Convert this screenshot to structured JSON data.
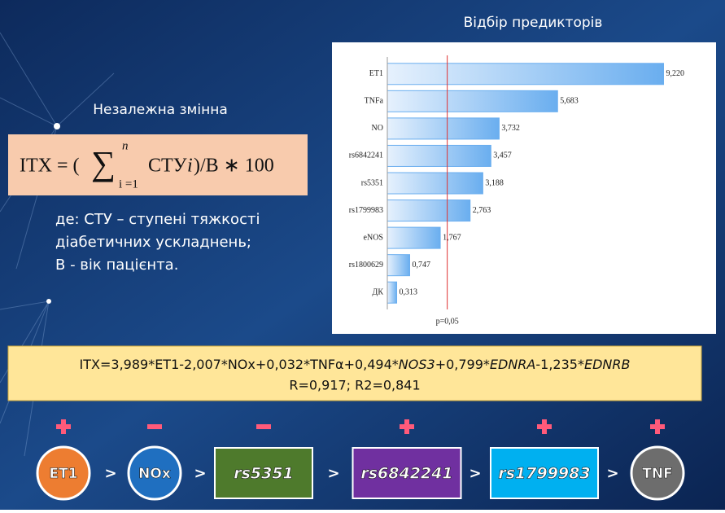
{
  "slide": {
    "left_heading": "Незалежна змінна",
    "formula": {
      "lhs": "ІТХ = (",
      "sum": "∑",
      "sup": "n",
      "sub": "i =1",
      "term": "СТУ",
      "index": "i",
      "rhs": " )/В ∗ 100"
    },
    "notes": [
      "де: СТУ – ступені тяжкості",
      "діабетичних ускладнень;",
      "В - вік пацієнта."
    ],
    "equation": {
      "segments": [
        {
          "text": "ІТХ=3,989*ЕТ1-2,007*NOx+0,032*TNFα+0,494*",
          "italic": false
        },
        {
          "text": "NOS3",
          "italic": true
        },
        {
          "text": "+0,799*",
          "italic": false
        },
        {
          "text": "EDNRA",
          "italic": true
        },
        {
          "text": "-1,235*",
          "italic": false
        },
        {
          "text": "EDNRB",
          "italic": true
        }
      ],
      "stats": "R=0,917; R2=0,841"
    },
    "flow": {
      "separator": ">",
      "nodes": [
        {
          "label": "ЕТ1",
          "sign": "plus",
          "shape": "circle",
          "color": "#ed7d31",
          "italic": false
        },
        {
          "label": "NOx",
          "sign": "minus",
          "shape": "circle",
          "color": "#1f6fc0",
          "italic": false
        },
        {
          "label": "rs5351",
          "sign": "minus",
          "shape": "rect",
          "color": "#4e7a2c",
          "italic": true
        },
        {
          "label": "rs6842241",
          "sign": "plus",
          "shape": "rect",
          "color": "#7030a0",
          "italic": true
        },
        {
          "label": "rs1799983",
          "sign": "plus",
          "shape": "rect",
          "color": "#00b0f0",
          "italic": true
        },
        {
          "label": "TNF",
          "sign": "plus",
          "shape": "circle",
          "color": "#6d6d6d",
          "italic": false
        }
      ]
    }
  },
  "chart_data": {
    "type": "bar",
    "orientation": "horizontal",
    "title": "Відбір предикторів",
    "categories": [
      "ET1",
      "TNFa",
      "NO",
      "rs6842241",
      "rs5351",
      "rs1799983",
      "eNOS",
      "rs1800629",
      "ДК"
    ],
    "values": [
      9.22,
      5.683,
      3.732,
      3.457,
      3.188,
      2.763,
      1.767,
      0.747,
      0.313
    ],
    "value_labels": [
      "9,220",
      "5,683",
      "3,732",
      "3,457",
      "3,188",
      "2,763",
      "1,767",
      "0,747",
      "0,313"
    ],
    "color": "#6aaeef",
    "xlim": [
      0,
      10.7
    ],
    "reference_line": {
      "value": 2,
      "label": "p=0,05",
      "color": "#e03030"
    }
  }
}
